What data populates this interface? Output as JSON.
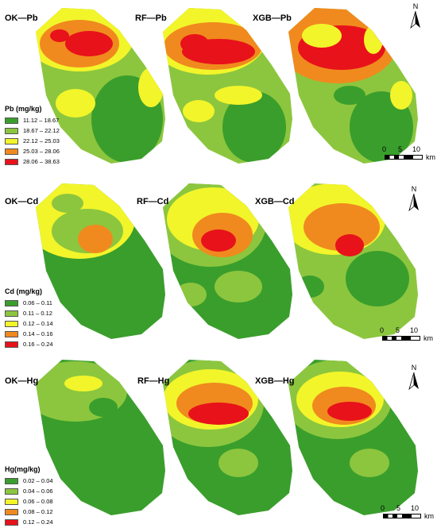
{
  "rows": [
    {
      "element": "Pb",
      "panels": [
        "OK—Pb",
        "RF—Pb",
        "XGB—Pb"
      ],
      "legend_title": "Pb (mg/kg)",
      "classes": [
        "11.12 – 18.67",
        "18.67 – 22.12",
        "22.12 – 25.03",
        "25.03 – 28.06",
        "28.06 – 38.63"
      ]
    },
    {
      "element": "Cd",
      "panels": [
        "OK—Cd",
        "RF—Cd",
        "XGB—Cd"
      ],
      "legend_title": "Cd (mg/kg)",
      "classes": [
        "0.06 – 0.11",
        "0.11 – 0.12",
        "0.12 – 0.14",
        "0.14 – 0.16",
        "0.16 – 0.24"
      ]
    },
    {
      "element": "Hg",
      "panels": [
        "OK—Hg",
        "RF—Hg",
        "XGB—Hg"
      ],
      "legend_title": "Hg(mg/kg)",
      "classes": [
        "0.02 – 0.04",
        "0.04 – 0.06",
        "0.06 – 0.08",
        "0.08 – 0.12",
        "0.12 – 0.24"
      ]
    }
  ],
  "class_colors": [
    "#3a9e2c",
    "#8cc63e",
    "#f2f52a",
    "#f08a1e",
    "#e8121a"
  ],
  "north_label": "N",
  "scale": {
    "ticks": [
      "0",
      "5",
      "10"
    ],
    "unit": "km"
  }
}
